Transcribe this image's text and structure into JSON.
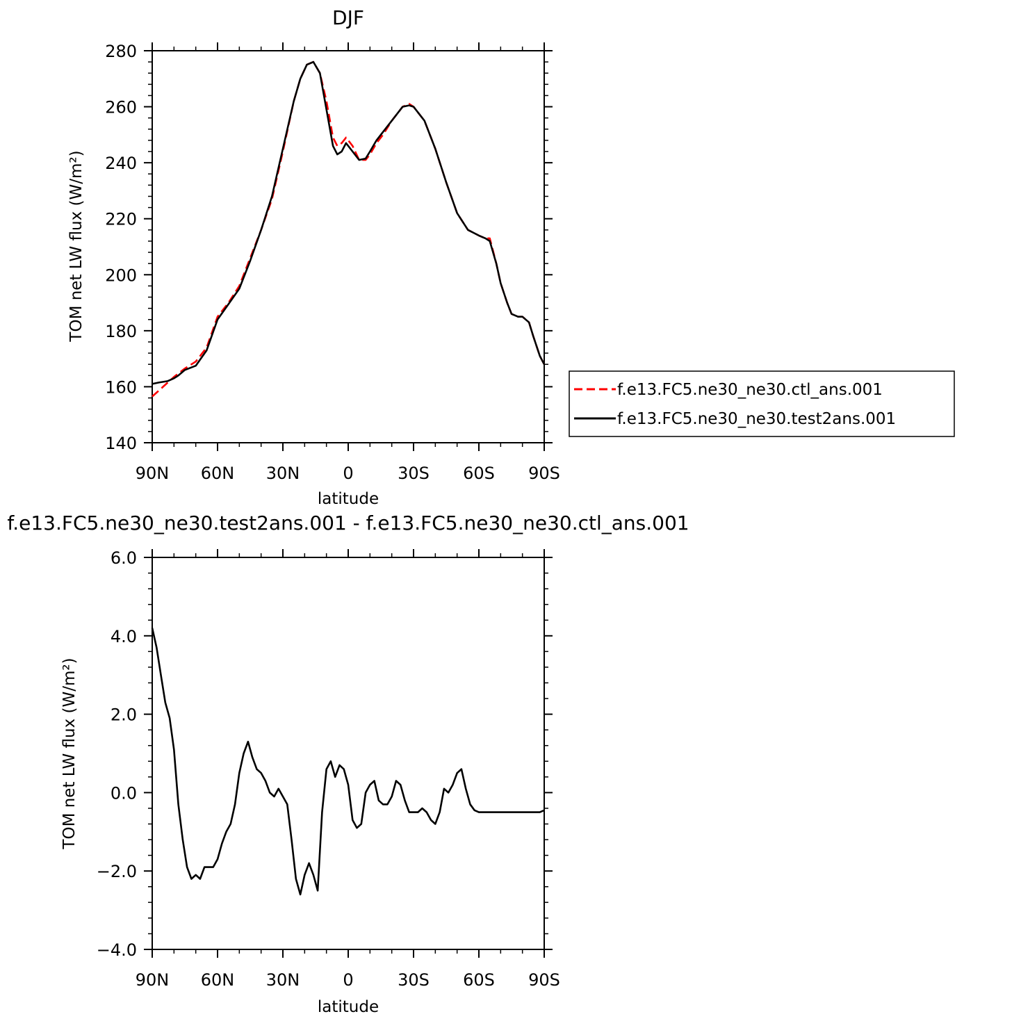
{
  "chart_data": [
    {
      "type": "line",
      "title": "DJF",
      "xlabel": "latitude",
      "ylabel": "TOM net LW flux (W/m²)",
      "xlim": [
        90,
        -90
      ],
      "ylim": [
        140,
        280
      ],
      "x_ticks": [
        90,
        60,
        30,
        0,
        -30,
        -60,
        -90
      ],
      "x_tick_labels": [
        "90N",
        "60N",
        "30N",
        "0",
        "30S",
        "60S",
        "90S"
      ],
      "y_ticks": [
        140,
        160,
        180,
        200,
        220,
        240,
        260,
        280
      ],
      "y_tick_labels": [
        "140",
        "160",
        "180",
        "200",
        "220",
        "240",
        "260",
        "280"
      ],
      "legend_position": "right",
      "series": [
        {
          "name": "f.e13.FC5.ne30_ne30.ctl_ans.001",
          "color": "#ff0000",
          "dash": "dashed",
          "x": [
            90,
            85,
            80,
            75,
            70,
            65,
            60,
            55,
            50,
            45,
            40,
            35,
            30,
            25,
            22,
            19,
            16,
            13,
            10,
            7,
            5,
            3,
            1,
            -2,
            -5,
            -8,
            -10,
            -13,
            -16,
            -20,
            -25,
            -28,
            -30,
            -35,
            -40,
            -45,
            -50,
            -55,
            -60,
            -63,
            -65,
            -68,
            -70,
            -73,
            -75,
            -78,
            -80,
            -83,
            -85,
            -88,
            -90
          ],
          "y": [
            156.5,
            160,
            163.5,
            166.5,
            169,
            174,
            185,
            190,
            196,
            206,
            216,
            227,
            244,
            262,
            270,
            275,
            276,
            272,
            262,
            249,
            246,
            247,
            249,
            246,
            241,
            241,
            243,
            247,
            250,
            255,
            260,
            261,
            260,
            255,
            245,
            233,
            222,
            216,
            214,
            213,
            213,
            204,
            197,
            190,
            186,
            185,
            185,
            183,
            178,
            171,
            168
          ]
        },
        {
          "name": "f.e13.FC5.ne30_ne30.test2ans.001",
          "color": "#000000",
          "dash": "solid",
          "x": [
            90,
            87,
            83,
            80,
            78,
            75,
            70,
            65,
            60,
            55,
            50,
            45,
            40,
            35,
            30,
            25,
            22,
            19,
            16,
            13,
            10,
            7,
            5,
            3,
            1,
            -2,
            -5,
            -8,
            -10,
            -13,
            -16,
            -20,
            -25,
            -28,
            -30,
            -35,
            -40,
            -45,
            -50,
            -55,
            -60,
            -63,
            -65,
            -68,
            -70,
            -73,
            -75,
            -78,
            -80,
            -83,
            -85,
            -88,
            -90
          ],
          "y": [
            161,
            161.5,
            162,
            163,
            164,
            166,
            167.5,
            173,
            184,
            189.5,
            195,
            205,
            216,
            228,
            245,
            262,
            270,
            275,
            276,
            272,
            259,
            246,
            243,
            244,
            247,
            244,
            241,
            241.5,
            244,
            248,
            251,
            255,
            260,
            260.5,
            260,
            255,
            245,
            233,
            222,
            216,
            214,
            213,
            212,
            204,
            197,
            190,
            186,
            185,
            185,
            183,
            178,
            171,
            168
          ]
        }
      ]
    },
    {
      "type": "line",
      "title": "f.e13.FC5.ne30_ne30.test2ans.001 - f.e13.FC5.ne30_ne30.ctl_ans.001",
      "xlabel": "latitude",
      "ylabel": "TOM net LW flux (W/m²)",
      "xlim": [
        90,
        -90
      ],
      "ylim": [
        -4.0,
        6.0
      ],
      "x_ticks": [
        90,
        60,
        30,
        0,
        -30,
        -60,
        -90
      ],
      "x_tick_labels": [
        "90N",
        "60N",
        "30N",
        "0",
        "30S",
        "60S",
        "90S"
      ],
      "y_ticks": [
        -4.0,
        -2.0,
        0.0,
        2.0,
        4.0,
        6.0
      ],
      "y_tick_labels": [
        "−4.0",
        "−2.0",
        "0.0",
        "2.0",
        "4.0",
        "6.0"
      ],
      "series": [
        {
          "color": "#000000",
          "dash": "solid",
          "x": [
            90,
            88,
            86,
            84,
            82,
            80,
            78,
            76,
            74,
            72,
            70,
            68,
            66,
            64,
            62,
            60,
            58,
            56,
            54,
            52,
            50,
            48,
            46,
            44,
            42,
            40,
            38,
            36,
            34,
            32,
            30,
            28,
            26,
            24,
            22,
            20,
            18,
            16,
            14,
            12,
            10,
            8,
            6,
            4,
            2,
            0,
            -2,
            -4,
            -6,
            -8,
            -10,
            -12,
            -14,
            -16,
            -18,
            -20,
            -22,
            -24,
            -26,
            -28,
            -30,
            -32,
            -34,
            -36,
            -38,
            -40,
            -42,
            -44,
            -46,
            -48,
            -50,
            -52,
            -54,
            -56,
            -58,
            -60,
            -62,
            -64,
            -66,
            -68,
            -70,
            -72,
            -74,
            -76,
            -78,
            -80,
            -82,
            -84,
            -86,
            -88,
            -90
          ],
          "y": [
            4.2,
            3.7,
            3.0,
            2.3,
            1.9,
            1.1,
            -0.3,
            -1.2,
            -1.9,
            -2.2,
            -2.1,
            -2.2,
            -1.9,
            -1.9,
            -1.9,
            -1.7,
            -1.3,
            -1.0,
            -0.8,
            -0.3,
            0.5,
            1.0,
            1.3,
            0.9,
            0.6,
            0.5,
            0.3,
            0.0,
            -0.1,
            0.1,
            -0.1,
            -0.3,
            -1.2,
            -2.2,
            -2.6,
            -2.1,
            -1.8,
            -2.1,
            -2.5,
            -0.5,
            0.6,
            0.8,
            0.4,
            0.7,
            0.6,
            0.2,
            -0.7,
            -0.9,
            -0.8,
            0.0,
            0.2,
            0.3,
            -0.2,
            -0.3,
            -0.3,
            -0.1,
            0.3,
            0.2,
            -0.2,
            -0.5,
            -0.5,
            -0.5,
            -0.4,
            -0.5,
            -0.7,
            -0.8,
            -0.5,
            0.1,
            0.0,
            0.2,
            0.5,
            0.6,
            0.1,
            -0.3,
            -0.45,
            -0.5,
            -0.5,
            -0.5,
            -0.5,
            -0.5,
            -0.5,
            -0.5,
            -0.5,
            -0.5,
            -0.5,
            -0.5,
            -0.5,
            -0.5,
            -0.5,
            -0.5,
            -0.45
          ]
        }
      ]
    }
  ]
}
